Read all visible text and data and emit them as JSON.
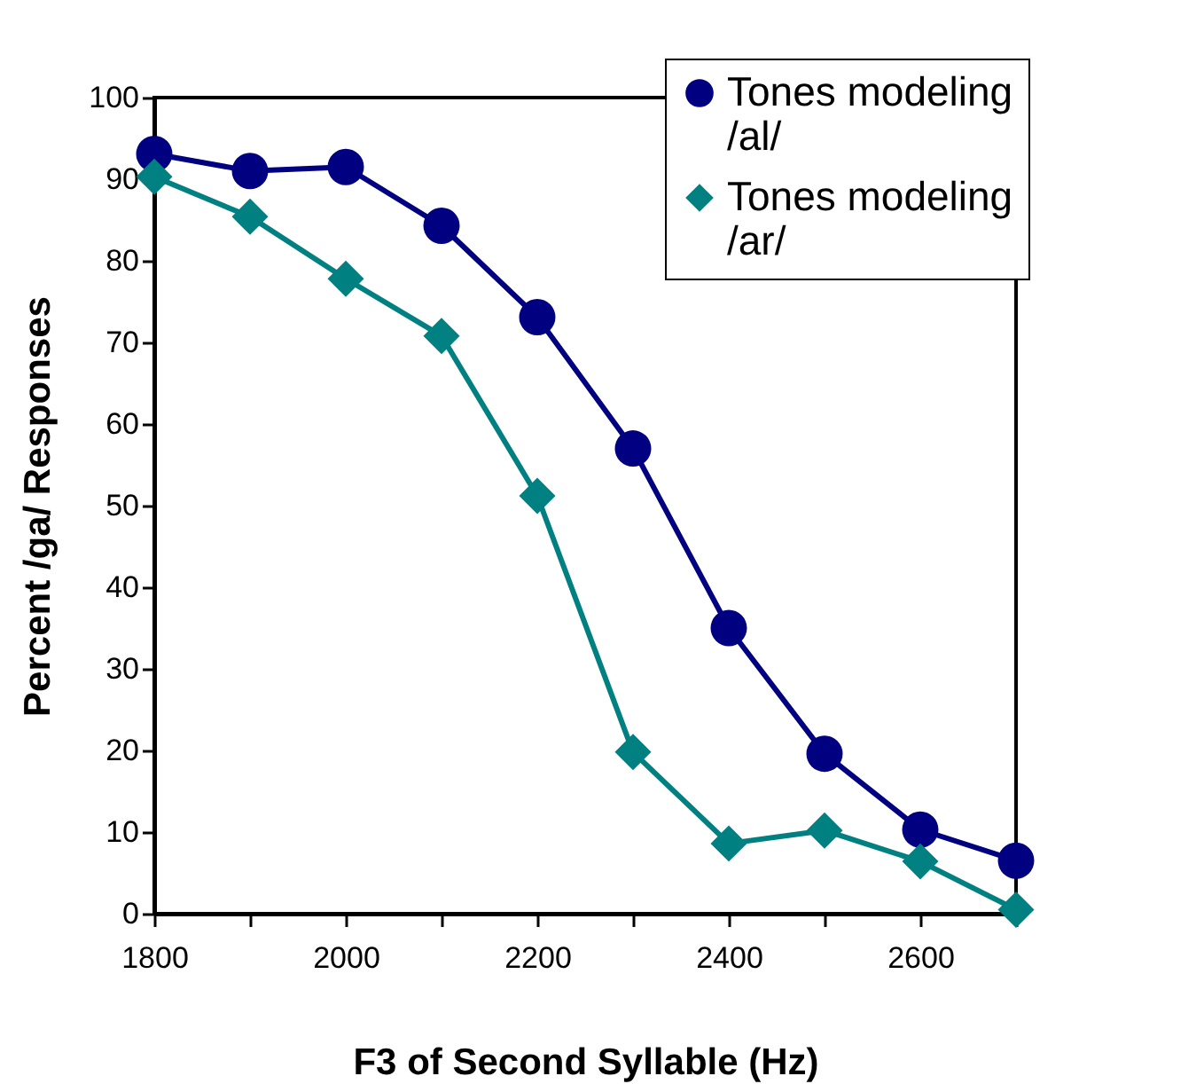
{
  "chart_data": {
    "type": "line",
    "xlabel": "F3 of Second Syllable (Hz)",
    "ylabel": "Percent /ga/ Responses",
    "x": [
      1800,
      1900,
      2000,
      2100,
      2200,
      2300,
      2400,
      2500,
      2600,
      2700
    ],
    "series": [
      {
        "name": "Tones modeling /al/",
        "color": "#000080",
        "marker": "circle",
        "values": [
          93.1,
          91,
          91.5,
          84.3,
          73.1,
          57,
          35,
          19.6,
          10.3,
          6.5
        ]
      },
      {
        "name": "Tones modeling /ar/",
        "color": "#008080",
        "marker": "diamond",
        "values": [
          90.3,
          85.4,
          77.8,
          70.8,
          51.2,
          19.8,
          8.6,
          10.2,
          6.4,
          0.5
        ]
      }
    ],
    "xlim": [
      1800,
      2700
    ],
    "ylim": [
      0,
      100
    ],
    "xticks": [
      1800,
      {
        "value": 1900,
        "label": null
      },
      2000,
      {
        "value": 2100,
        "label": null
      },
      2200,
      {
        "value": 2300,
        "label": null
      },
      2400,
      {
        "value": 2500,
        "label": null
      },
      2600,
      {
        "value": 2700,
        "label": null
      }
    ],
    "yticks": [
      0,
      10,
      20,
      30,
      40,
      50,
      60,
      70,
      80,
      90,
      100
    ],
    "grid": false,
    "legend": "top right",
    "line_style": "solid"
  }
}
